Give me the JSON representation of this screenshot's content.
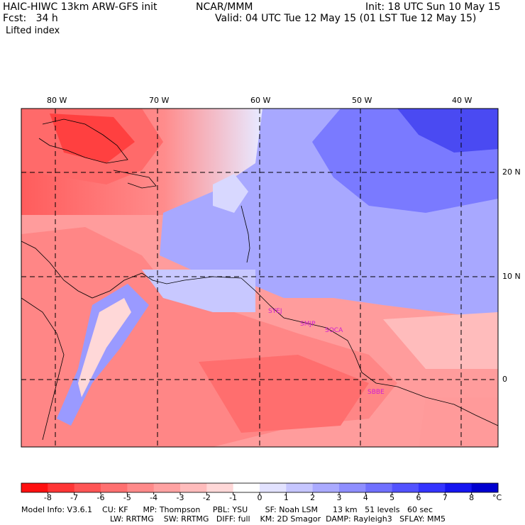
{
  "header": {
    "model": "HAIC-HIWC 13km ARW-GFS init",
    "org": "NCAR/MMM",
    "init": "Init: 18 UTC Sun 10 May 15",
    "fcst": "Fcst:   34 h",
    "valid": "Valid: 04 UTC Tue 12 May 15 (01 LST Tue 12 May 15)",
    "field": "Lifted index"
  },
  "map": {
    "lon_labels": [
      "80 W",
      "70 W",
      "60 W",
      "50 W",
      "40 W"
    ],
    "lat_labels": [
      "20 N",
      "10 N",
      "0"
    ],
    "stations": [
      "SYEJ",
      "SMJP",
      "SOCA",
      "SBBE"
    ]
  },
  "colorbar": {
    "labels": [
      "-8",
      "-7",
      "-6",
      "-5",
      "-4",
      "-3",
      "-2",
      "-1",
      "0",
      "1",
      "2",
      "3",
      "4",
      "5",
      "6",
      "7",
      "8"
    ],
    "unit": "°C",
    "colors": [
      "#ff1010",
      "#ff3535",
      "#ff5555",
      "#ff7070",
      "#ff8a8a",
      "#ffa2a2",
      "#ffbcbc",
      "#ffd8d8",
      "#ffffff",
      "#e2e2ff",
      "#c6c6ff",
      "#aaaaff",
      "#8e8eff",
      "#7070ff",
      "#5252ff",
      "#3434ff",
      "#1515f0",
      "#0000d0"
    ]
  },
  "model_info": {
    "line1": "Model Info: V3.6.1    CU: KF      MP: Thompson     PBL: YSU       SF: Noah LSM      13 km   51 levels   60 sec",
    "line2": "LW: RRTMG    SW: RRTMG   DIFF: full    KM: 2D Smagor  DAMP: Rayleigh3   SFLAY: MM5"
  }
}
